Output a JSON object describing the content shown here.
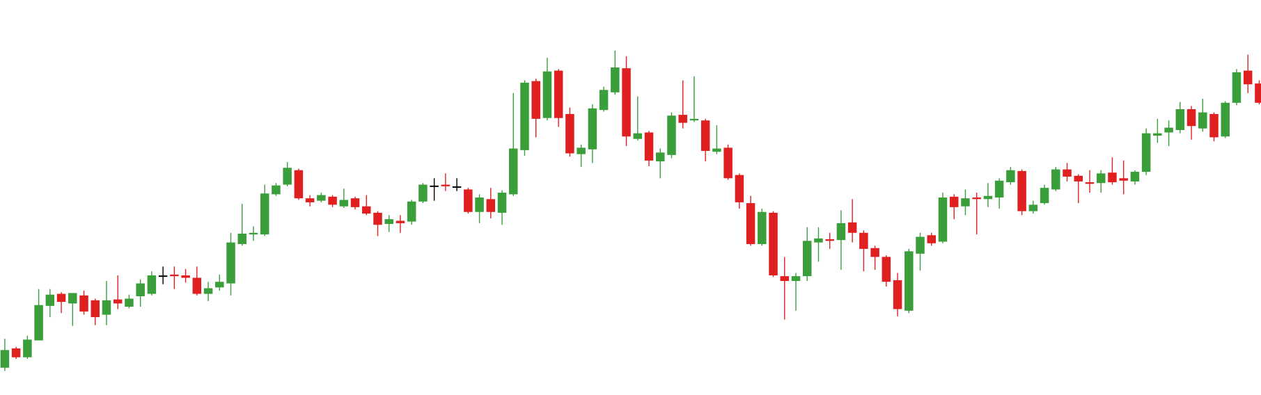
{
  "chart_data": {
    "type": "candlestick",
    "up_color": "#3a9e3a",
    "down_color": "#e02020",
    "flat_color": "#000000",
    "ylim": [
      8,
      500
    ],
    "open": [
      42,
      66,
      55,
      76,
      119,
      134,
      122,
      132,
      126,
      108,
      127,
      118,
      131,
      134,
      156,
      158,
      157,
      154,
      134,
      142,
      147,
      196,
      208,
      208,
      258,
      270,
      288,
      253,
      250,
      255,
      243,
      253,
      243,
      235,
      221,
      225,
      224,
      249,
      268,
      270,
      267,
      264,
      236,
      252,
      235,
      258,
      313,
      399,
      353,
      412,
      358,
      308,
      314,
      363,
      385,
      415,
      327,
      335,
      299,
      307,
      357,
      350,
      350,
      311,
      316,
      282,
      247,
      196,
      235,
      156,
      150,
      156,
      198,
      202,
      201,
      223,
      210,
      191,
      180,
      151,
      113,
      184,
      207,
      199,
      255,
      243,
      254,
      252,
      254,
      273,
      287,
      237,
      247,
      264,
      289,
      281,
      273,
      272,
      285,
      278,
      274,
      286,
      331,
      335,
      338,
      364,
      340,
      358,
      330,
      372,
      412,
      396
    ],
    "high": [
      78,
      68,
      82,
      140,
      140,
      136,
      135,
      138,
      128,
      150,
      157,
      133,
      152,
      162,
      168,
      168,
      165,
      168,
      149,
      158,
      210,
      246,
      218,
      270,
      272,
      298,
      290,
      257,
      260,
      257,
      265,
      255,
      257,
      237,
      232,
      232,
      251,
      272,
      278,
      284,
      278,
      266,
      258,
      266,
      263,
      384,
      400,
      402,
      428,
      414,
      366,
      320,
      370,
      392,
      437,
      430,
      380,
      337,
      315,
      360,
      400,
      405,
      352,
      344,
      320,
      284,
      256,
      240,
      237,
      180,
      160,
      217,
      217,
      210,
      238,
      252,
      213,
      194,
      182,
      160,
      190,
      210,
      210,
      260,
      258,
      264,
      260,
      272,
      278,
      292,
      289,
      250,
      270,
      292,
      297,
      283,
      288,
      288,
      304,
      300,
      288,
      340,
      352,
      350,
      373,
      368,
      377,
      360,
      374,
      414,
      432,
      400
    ],
    "low": [
      38,
      53,
      53,
      76,
      105,
      110,
      94,
      108,
      95,
      95,
      115,
      116,
      118,
      132,
      146,
      140,
      148,
      132,
      125,
      138,
      132,
      194,
      200,
      206,
      256,
      268,
      251,
      243,
      248,
      242,
      241,
      239,
      232,
      206,
      211,
      210,
      220,
      247,
      250,
      262,
      262,
      234,
      222,
      228,
      220,
      256,
      306,
      329,
      350,
      342,
      305,
      292,
      297,
      361,
      382,
      318,
      325,
      293,
      278,
      303,
      340,
      348,
      299,
      308,
      276,
      240,
      194,
      194,
      155,
      102,
      113,
      150,
      174,
      190,
      164,
      198,
      162,
      164,
      143,
      106,
      110,
      163,
      194,
      197,
      227,
      232,
      208,
      242,
      240,
      270,
      232,
      234,
      245,
      262,
      274,
      247,
      260,
      260,
      270,
      258,
      270,
      282,
      322,
      318,
      334,
      326,
      336,
      324,
      328,
      369,
      384,
      370
    ],
    "close": [
      64,
      55,
      77,
      120,
      133,
      124,
      135,
      112,
      105,
      126,
      122,
      128,
      147,
      157,
      156,
      156,
      154,
      134,
      141,
      149,
      198,
      209,
      210,
      259,
      269,
      291,
      253,
      248,
      257,
      245,
      251,
      242,
      234,
      220,
      227,
      222,
      249,
      270,
      268,
      268,
      267,
      236,
      254,
      236,
      260,
      315,
      397,
      352,
      411,
      353,
      309,
      316,
      365,
      388,
      416,
      330,
      334,
      300,
      310,
      356,
      347,
      352,
      312,
      315,
      278,
      248,
      196,
      236,
      157,
      150,
      156,
      200,
      203,
      200,
      222,
      210,
      190,
      180,
      149,
      115,
      187,
      205,
      197,
      254,
      242,
      253,
      252,
      256,
      275,
      288,
      237,
      245,
      266,
      289,
      280,
      274,
      271,
      284,
      273,
      275,
      286,
      334,
      334,
      341,
      364,
      343,
      360,
      329,
      372,
      410,
      395,
      372
    ]
  }
}
